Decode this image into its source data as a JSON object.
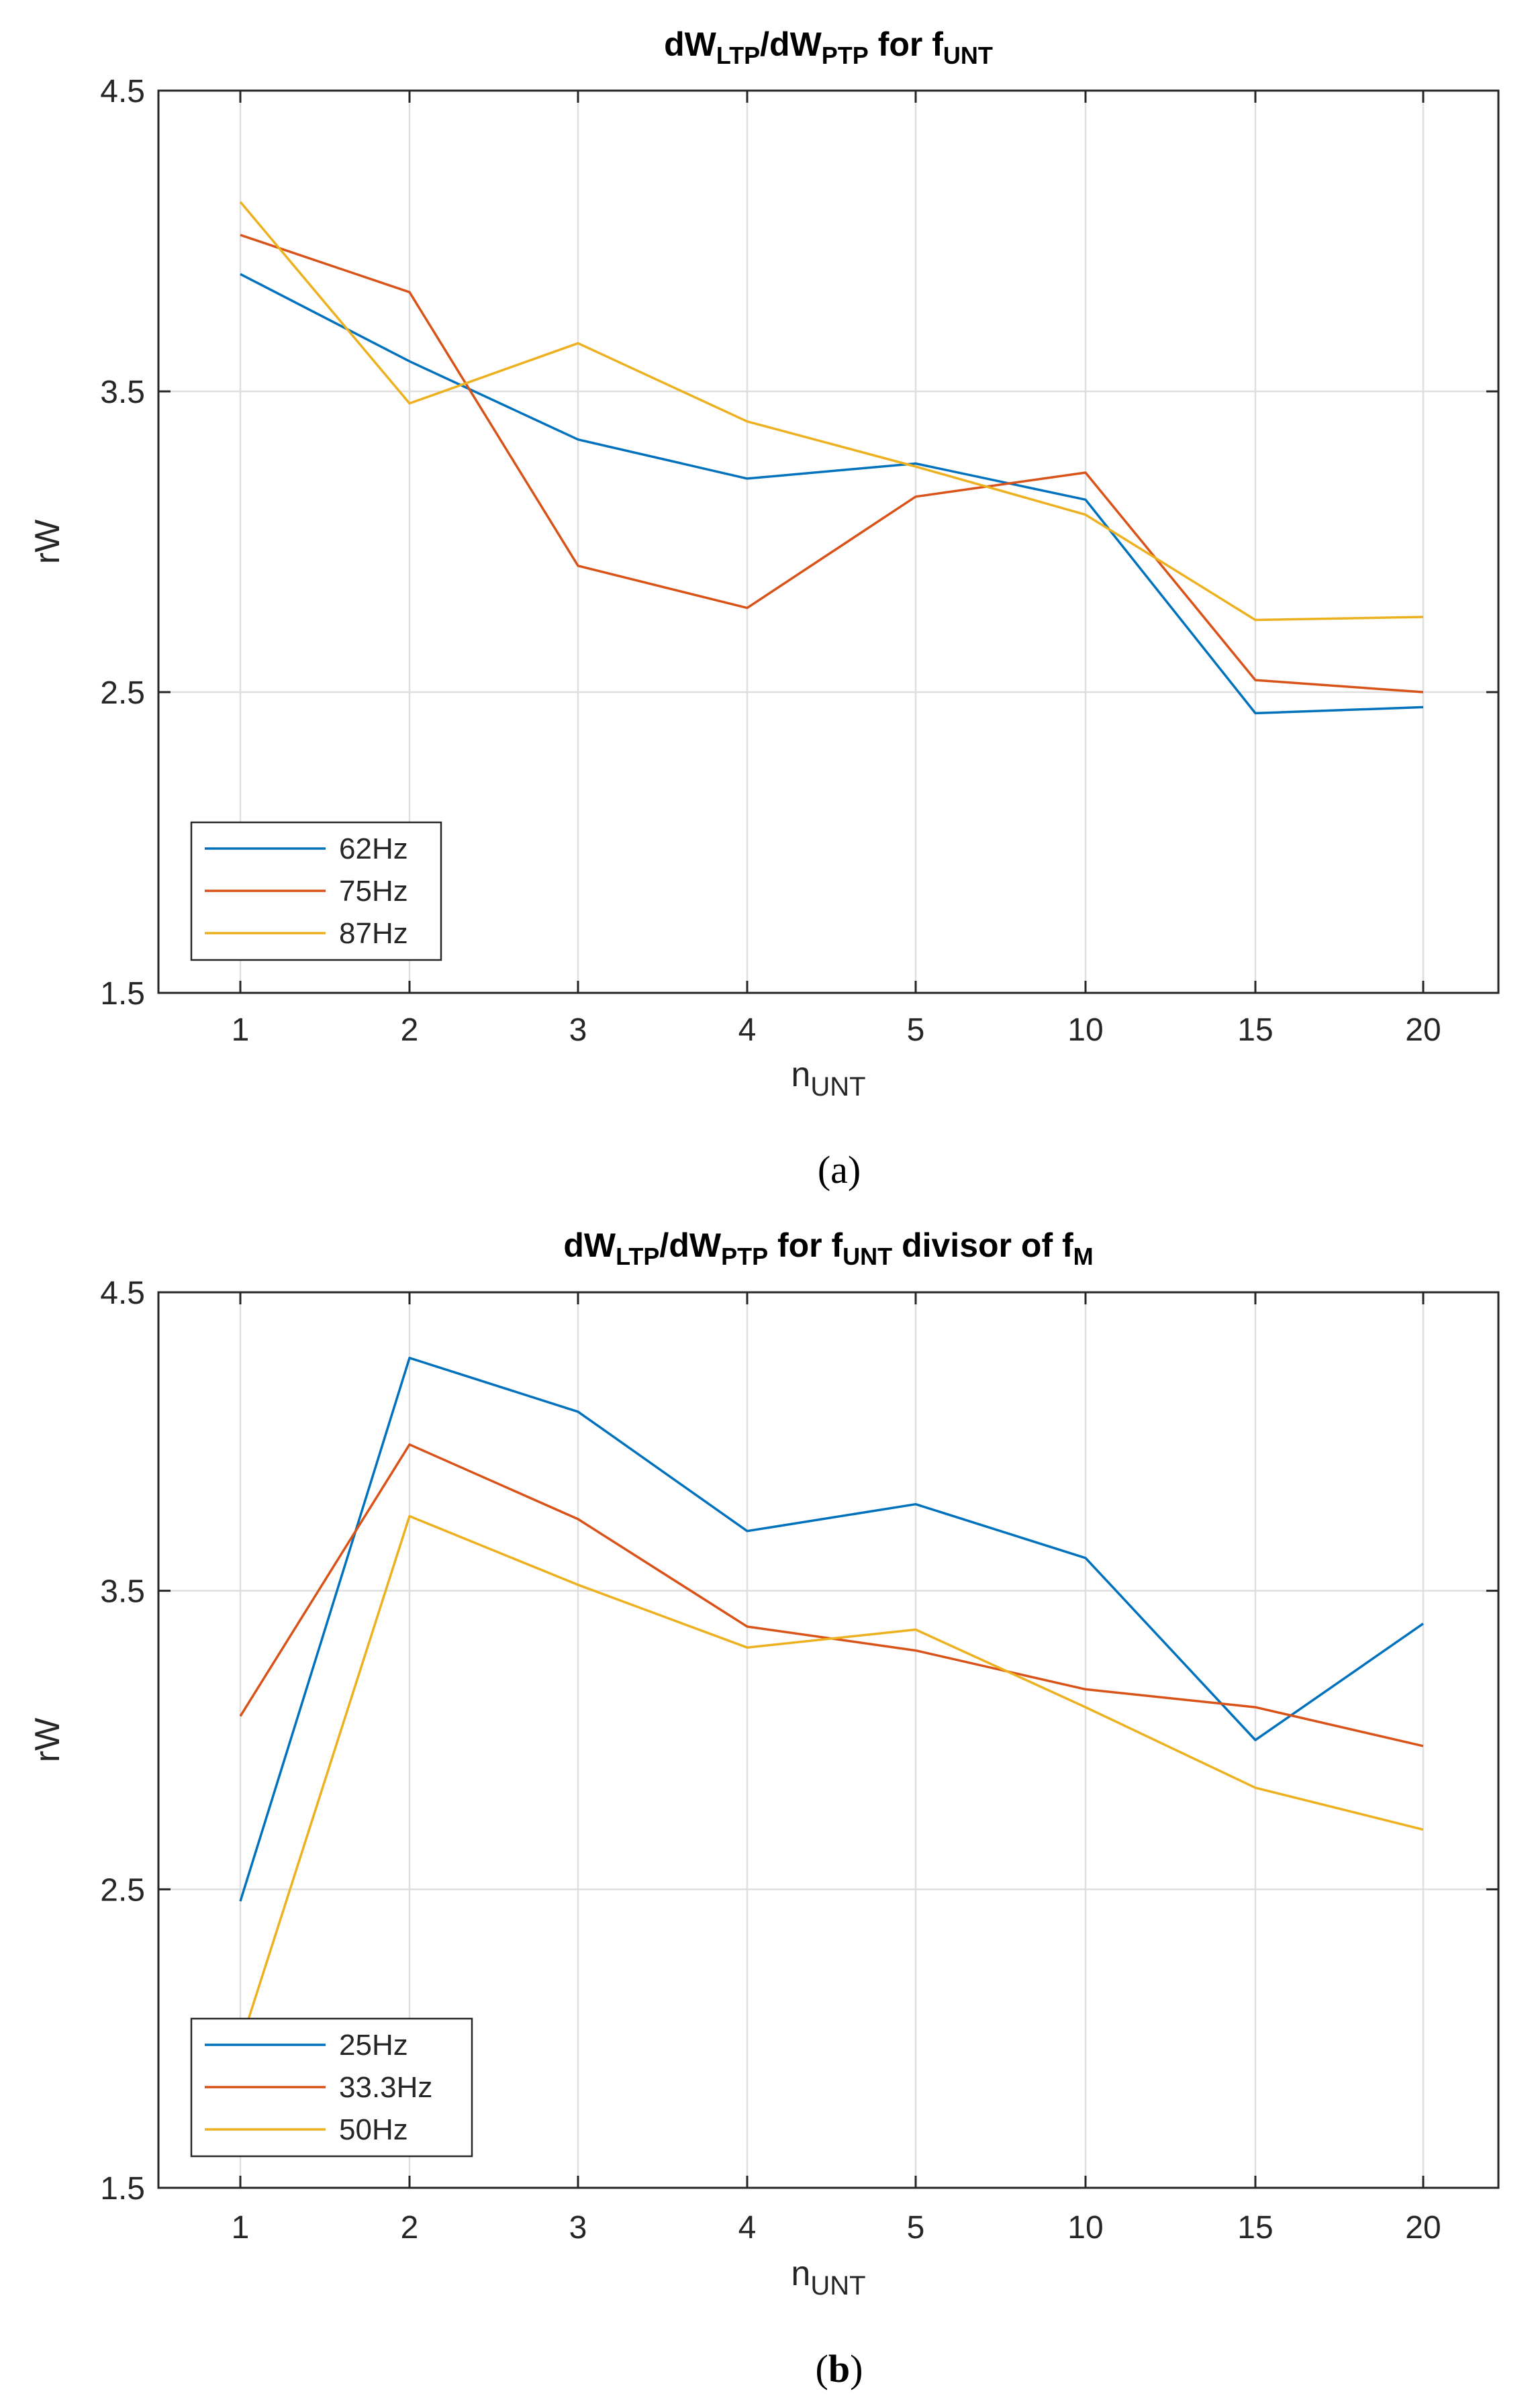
{
  "chart_data": [
    {
      "type": "line",
      "panel": "a",
      "caption": "(a)",
      "title": {
        "main": "dW",
        "sub1": "LTP",
        "mid": "/dW",
        "sub2": "PTP",
        "tail": " for f",
        "sub3": "UNT",
        "rest": ""
      },
      "xlabel": {
        "main": "n",
        "sub": "UNT"
      },
      "ylabel": "rW",
      "categories": [
        "1",
        "2",
        "3",
        "4",
        "5",
        "10",
        "15",
        "20"
      ],
      "yticks": [
        "1.5",
        "2.5",
        "3.5",
        "4.5"
      ],
      "ylim": [
        1.5,
        4.5
      ],
      "grid": true,
      "legend_position": "bottom-left",
      "series": [
        {
          "name": "62Hz",
          "color": "#0072bd",
          "values": [
            3.89,
            3.6,
            3.34,
            3.21,
            3.26,
            3.14,
            2.43,
            2.45
          ]
        },
        {
          "name": "75Hz",
          "color": "#d95319",
          "values": [
            4.02,
            3.83,
            2.92,
            2.78,
            3.15,
            3.23,
            2.54,
            2.5
          ]
        },
        {
          "name": "87Hz",
          "color": "#edb120",
          "values": [
            4.13,
            3.46,
            3.66,
            3.4,
            3.25,
            3.09,
            2.74,
            2.75
          ]
        }
      ]
    },
    {
      "type": "line",
      "panel": "b",
      "caption": "(b)",
      "title": {
        "main": "dW",
        "sub1": "LTP",
        "mid": "/dW",
        "sub2": "PTP",
        "tail": " for f",
        "sub3": "UNT",
        "rest": " divisor of f",
        "sub4": "M"
      },
      "xlabel": {
        "main": "n",
        "sub": "UNT"
      },
      "ylabel": "rW",
      "categories": [
        "1",
        "2",
        "3",
        "4",
        "5",
        "10",
        "15",
        "20"
      ],
      "yticks": [
        "1.5",
        "2.5",
        "3.5",
        "4.5"
      ],
      "ylim": [
        1.5,
        4.5
      ],
      "grid": true,
      "legend_position": "bottom-left",
      "series": [
        {
          "name": "25Hz",
          "color": "#0072bd",
          "values": [
            2.46,
            4.28,
            4.1,
            3.7,
            3.79,
            3.61,
            3.0,
            3.39
          ]
        },
        {
          "name": "33.3Hz",
          "color": "#d95319",
          "values": [
            3.08,
            3.99,
            3.74,
            3.38,
            3.3,
            3.17,
            3.11,
            2.98
          ]
        },
        {
          "name": "50Hz",
          "color": "#edb120",
          "values": [
            1.98,
            3.75,
            3.52,
            3.31,
            3.37,
            3.11,
            2.84,
            2.7
          ]
        }
      ]
    }
  ]
}
